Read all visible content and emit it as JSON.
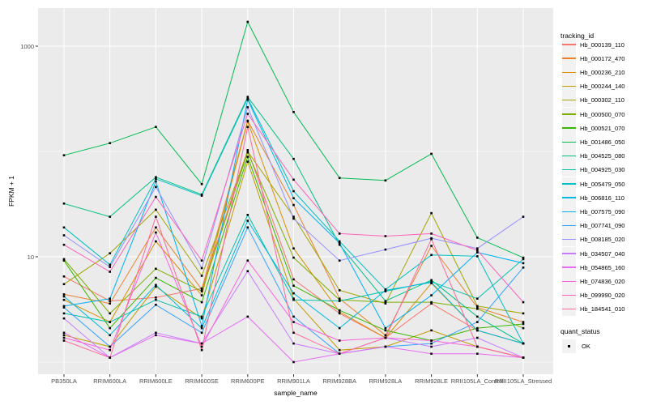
{
  "figure": {
    "ylabel": "FPKM + 1",
    "xlabel": "sample_name",
    "legend_title": "tracking_id",
    "quant_legend": {
      "title": "quant_status",
      "label": "OK",
      "point_color": "#000000"
    }
  },
  "chart_data": {
    "type": "line",
    "title": "",
    "xlabel": "sample_name",
    "ylabel": "FPKM + 1",
    "y_scale": "log10",
    "y_major_breaks": [
      10,
      1000
    ],
    "y_major_labels": [
      "10",
      "1000"
    ],
    "y_minor_breaks": [
      1,
      100
    ],
    "ylim": [
      1,
      2000
    ],
    "grid": true,
    "panel_bg": "#EBEBEB",
    "grid_color": "#FFFFFF",
    "point_shape": "filled-square",
    "point_color": "#000000",
    "legend_position": "right",
    "categories": [
      "PB350LA",
      "RRIM600LA",
      "RRIM600LE",
      "RRIM600SE",
      "RRIM600PE",
      "RRIM901LA",
      "RRIM928BA",
      "RRIM928LA",
      "RRIM928LE",
      "RRII105LA_Control",
      "RRII105LA_Stressed"
    ],
    "series": [
      {
        "name": "Hb_000139_110",
        "color": "#F8766D",
        "values": [
          6.5,
          3.8,
          4.1,
          5.0,
          103,
          6.1,
          2.9,
          1.7,
          3.6,
          2.0,
          1.5
        ]
      },
      {
        "name": "Hb_000172_470",
        "color": "#EA8331",
        "values": [
          4.4,
          3.6,
          19,
          4.9,
          196,
          31,
          4.0,
          1.8,
          12.7,
          3.3,
          2.4
        ]
      },
      {
        "name": "Hb_000236_210",
        "color": "#D89000",
        "values": [
          3.9,
          2.4,
          14,
          4.3,
          193,
          12,
          3.0,
          1.7,
          5.6,
          2.0,
          1.5
        ]
      },
      {
        "name": "Hb_000244_140",
        "color": "#C09B00",
        "values": [
          1.8,
          1.4,
          5.2,
          2.6,
          80,
          4.0,
          1.3,
          1.4,
          2.0,
          1.4,
          1.1
        ]
      },
      {
        "name": "Hb_000302_110",
        "color": "#A3A500",
        "values": [
          5.5,
          10.8,
          28,
          6.6,
          100,
          24,
          4.8,
          3.6,
          26,
          3.4,
          2.9
        ]
      },
      {
        "name": "Hb_000500_070",
        "color": "#7CAE00",
        "values": [
          9.5,
          2.9,
          7.7,
          4.7,
          98,
          9.8,
          3.9,
          3.7,
          3.7,
          3.2,
          2.1
        ]
      },
      {
        "name": "Hb_000521_070",
        "color": "#39B600",
        "values": [
          9.2,
          2.1,
          6.3,
          3.7,
          89,
          5.3,
          3.1,
          2.0,
          1.6,
          2.1,
          2.3
        ]
      },
      {
        "name": "Hb_001486_050",
        "color": "#00BB4E",
        "values": [
          92,
          120,
          171,
          49,
          1700,
          237,
          56,
          53,
          95,
          15.2,
          9.8
        ]
      },
      {
        "name": "Hb_004525_080",
        "color": "#00C087",
        "values": [
          32,
          24,
          57,
          39,
          330,
          85,
          13,
          3.8,
          6.0,
          2.7,
          1.5
        ]
      },
      {
        "name": "Hb_004925_030",
        "color": "#00C1AB",
        "values": [
          2.9,
          2.4,
          3.9,
          2.7,
          25,
          3.9,
          3.8,
          4.7,
          5.8,
          4.0,
          9.5
        ]
      },
      {
        "name": "Hb_005479_050",
        "color": "#00BFC4",
        "values": [
          19,
          8.4,
          55,
          38,
          320,
          42,
          14,
          4.9,
          10.4,
          10.1,
          1.5
        ]
      },
      {
        "name": "Hb_006816_110",
        "color": "#00BAE0",
        "values": [
          4.2,
          1.8,
          5.4,
          2.1,
          22,
          4.5,
          2.1,
          4.8,
          5.7,
          2.0,
          1.5
        ]
      },
      {
        "name": "Hb_007575_090",
        "color": "#00B0F6",
        "values": [
          3.4,
          4.0,
          52,
          2.2,
          310,
          36,
          13.5,
          2.1,
          4.3,
          11,
          8.7
        ]
      },
      {
        "name": "Hb_007741_090",
        "color": "#35A2FF",
        "values": [
          3.3,
          1.4,
          3.5,
          1.9,
          19,
          2.7,
          1.2,
          1.4,
          1.5,
          2.4,
          7.9
        ]
      },
      {
        "name": "Hb_008185_020",
        "color": "#9590FF",
        "values": [
          16,
          8.0,
          46,
          7.8,
          263,
          23,
          9.2,
          11.7,
          15,
          12,
          24
        ]
      },
      {
        "name": "Hb_034507_040",
        "color": "#C77CFF",
        "values": [
          2.6,
          1.1,
          1.9,
          1.5,
          7.3,
          1.5,
          1.2,
          1.7,
          1.4,
          1.7,
          1.1
        ]
      },
      {
        "name": "Hb_054865_160",
        "color": "#E76BF3",
        "values": [
          1.9,
          1.1,
          1.8,
          1.5,
          2.7,
          1.0,
          1.2,
          1.4,
          1.2,
          1.2,
          1.1
        ]
      },
      {
        "name": "Hb_074836_020",
        "color": "#FA62DB",
        "values": [
          1.7,
          1.3,
          17,
          1.4,
          9.2,
          2.4,
          1.6,
          1.7,
          1.6,
          1.4,
          1.1
        ]
      },
      {
        "name": "Hb_099990_020",
        "color": "#FF62BC",
        "values": [
          13,
          7.2,
          37,
          9.2,
          228,
          54,
          16.6,
          15.7,
          16.6,
          11.5,
          3.7
        ]
      },
      {
        "name": "Hb_184541_010",
        "color": "#FF6A98",
        "values": [
          1.6,
          1.1,
          24,
          1.3,
          171,
          1.9,
          1.2,
          1.7,
          14.7,
          1.4,
          1.1
        ]
      }
    ]
  }
}
